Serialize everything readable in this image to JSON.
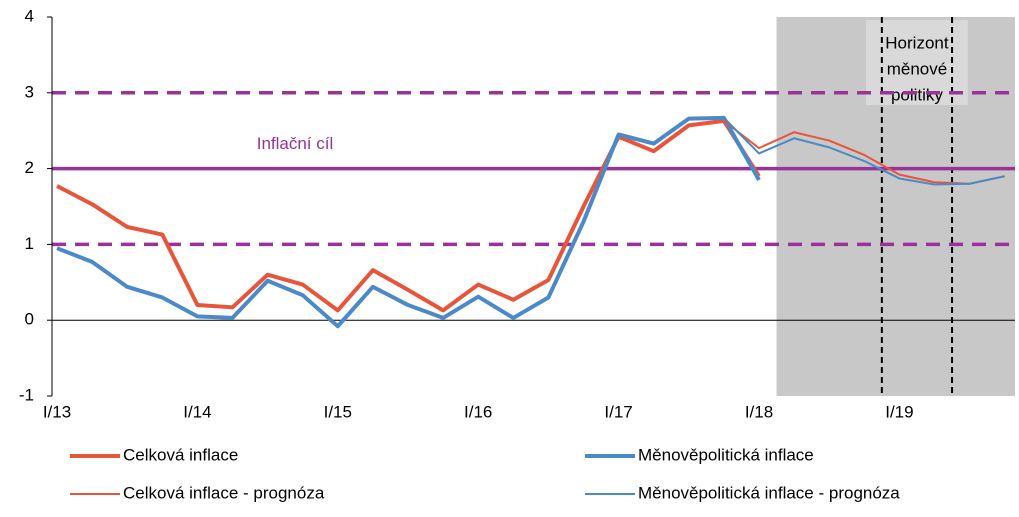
{
  "chart_data": {
    "type": "line",
    "categories": [
      "I/13",
      null,
      null,
      null,
      "I/14",
      null,
      null,
      null,
      "I/15",
      null,
      null,
      null,
      "I/16",
      null,
      null,
      null,
      "I/17",
      null,
      null,
      null,
      "I/18",
      null,
      null,
      null,
      "I/19",
      null,
      null,
      null
    ],
    "series": [
      {
        "name": "Celková inflace",
        "color": "#e8553a",
        "width": 4,
        "values": [
          1.77,
          1.53,
          1.23,
          1.13,
          0.2,
          0.17,
          0.6,
          0.47,
          0.13,
          0.66,
          0.4,
          0.13,
          0.47,
          0.27,
          0.53,
          1.5,
          2.42,
          2.23,
          2.57,
          2.63,
          1.9,
          null,
          null,
          null,
          null,
          null,
          null,
          null
        ]
      },
      {
        "name": "Měnověpolitická inflace",
        "color": "#4a8ac8",
        "width": 4,
        "values": [
          0.95,
          0.77,
          0.44,
          0.3,
          0.05,
          0.03,
          0.52,
          0.33,
          -0.08,
          0.44,
          0.2,
          0.03,
          0.31,
          0.03,
          0.3,
          1.3,
          2.45,
          2.33,
          2.66,
          2.67,
          1.85,
          null,
          null,
          null,
          null,
          null,
          null,
          null
        ]
      },
      {
        "name": "Celková inflace - prognóza",
        "color": "#e8553a",
        "width": 2,
        "values": [
          null,
          null,
          null,
          null,
          null,
          null,
          null,
          null,
          null,
          null,
          null,
          null,
          null,
          null,
          null,
          null,
          null,
          null,
          null,
          2.63,
          2.27,
          2.48,
          2.37,
          2.18,
          1.92,
          1.82,
          1.8,
          1.9
        ]
      },
      {
        "name": "Měnověpolitická inflace - prognóza",
        "color": "#4a8ac8",
        "width": 2,
        "values": [
          null,
          null,
          null,
          null,
          null,
          null,
          null,
          null,
          null,
          null,
          null,
          null,
          null,
          null,
          null,
          null,
          null,
          null,
          null,
          2.67,
          2.2,
          2.4,
          2.28,
          2.1,
          1.87,
          1.79,
          1.8,
          1.9
        ]
      }
    ],
    "ylim": [
      -1,
      4
    ],
    "yticks": [
      -1,
      0,
      1,
      2,
      3,
      4
    ],
    "target": {
      "label": "Inflační cíl",
      "value": 2,
      "color": "#993399"
    },
    "band": [
      1,
      3
    ],
    "horizon_label": [
      "Horizont",
      "měnové",
      "politiky"
    ]
  }
}
